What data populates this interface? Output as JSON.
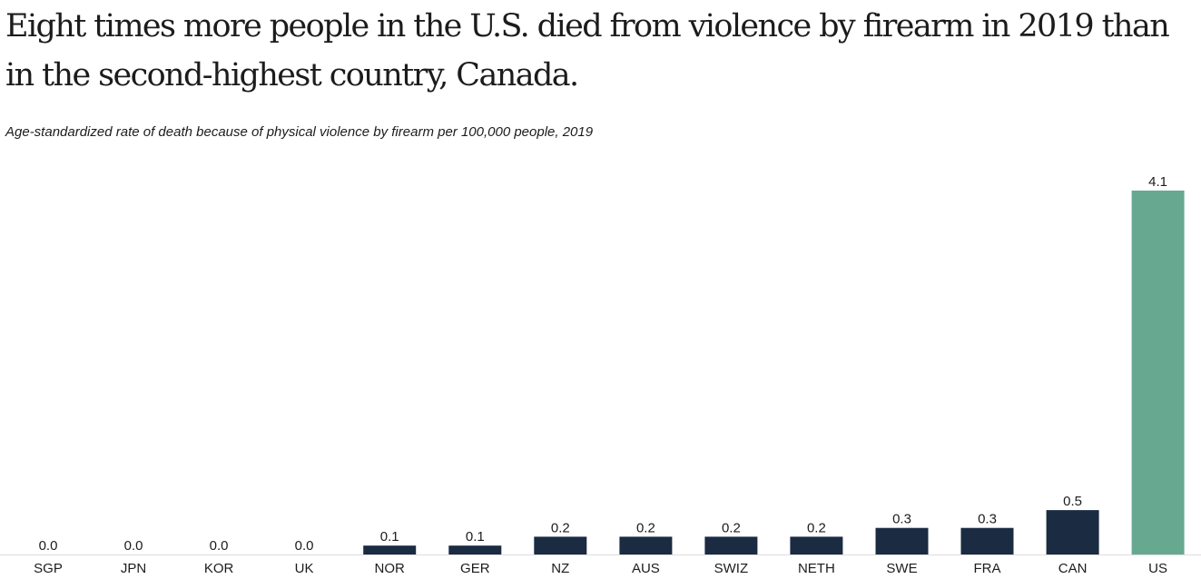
{
  "title": "Eight times more people in the U.S. died from violence by firearm in 2019 than in the second-highest country, Canada.",
  "subtitle": "Age-standardized rate of death because of physical violence by firearm per 100,000 people, 2019",
  "colors": {
    "bar_default": "#1a2b42",
    "bar_highlight": "#66a990",
    "axis": "#dddddd",
    "text": "#1c1c1c"
  },
  "chart_data": {
    "type": "bar",
    "title": "Eight times more people in the U.S. died from violence by firearm in 2019 than in the second-highest country, Canada.",
    "subtitle": "Age-standardized rate of death because of physical violence by firearm per 100,000 people, 2019",
    "xlabel": "",
    "ylabel": "",
    "categories": [
      "SGP",
      "JPN",
      "KOR",
      "UK",
      "NOR",
      "GER",
      "NZ",
      "AUS",
      "SWIZ",
      "NETH",
      "SWE",
      "FRA",
      "CAN",
      "US"
    ],
    "values": [
      0.0,
      0.0,
      0.0,
      0.0,
      0.1,
      0.1,
      0.2,
      0.2,
      0.2,
      0.2,
      0.3,
      0.3,
      0.5,
      4.1
    ],
    "value_labels": [
      "0.0",
      "0.0",
      "0.0",
      "0.0",
      "0.1",
      "0.1",
      "0.2",
      "0.2",
      "0.2",
      "0.2",
      "0.3",
      "0.3",
      "0.5",
      "4.1"
    ],
    "highlight": "US",
    "ylim": [
      0,
      4.1
    ],
    "grid": false
  }
}
